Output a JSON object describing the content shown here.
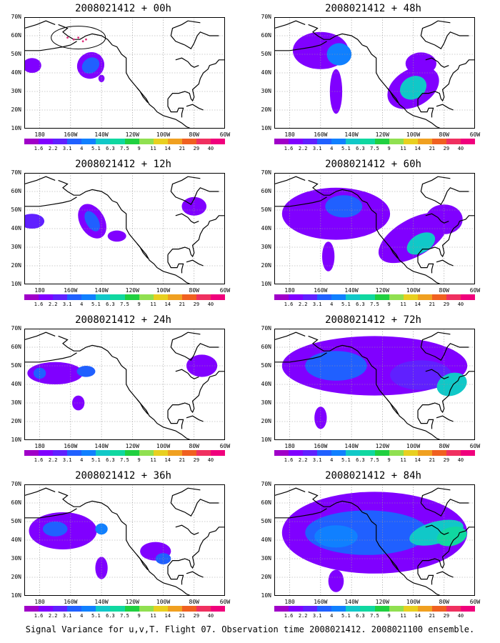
{
  "panels": [
    {
      "title": "2008021412 + 00h"
    },
    {
      "title": "2008021412 + 48h"
    },
    {
      "title": "2008021412 + 12h"
    },
    {
      "title": "2008021412 + 60h"
    },
    {
      "title": "2008021412 + 24h"
    },
    {
      "title": "2008021412 + 72h"
    },
    {
      "title": "2008021412 + 36h"
    },
    {
      "title": "2008021412 + 84h"
    }
  ],
  "lat_labels": [
    "70N",
    "60N",
    "50N",
    "40N",
    "30N",
    "20N",
    "10N"
  ],
  "lon_labels": [
    "180",
    "160W",
    "140W",
    "120W",
    "100W",
    "80W",
    "60W"
  ],
  "colorbar": {
    "labels": [
      "1.6",
      "2.2",
      "3.1",
      "4",
      "5.1",
      "6.3",
      "7.5",
      "9",
      "11",
      "14",
      "21",
      "29",
      "40"
    ],
    "colors": [
      "#a000c8",
      "#8000ff",
      "#6020ff",
      "#2060ff",
      "#1080ff",
      "#10c8c8",
      "#10d8a0",
      "#20d040",
      "#90e050",
      "#e8d020",
      "#f0a020",
      "#f06020",
      "#f03060",
      "#f0007c"
    ]
  },
  "caption": "Signal Variance for u,v,T. Flight 07. Observation time 2008021412. 2008021100 ensemble."
}
